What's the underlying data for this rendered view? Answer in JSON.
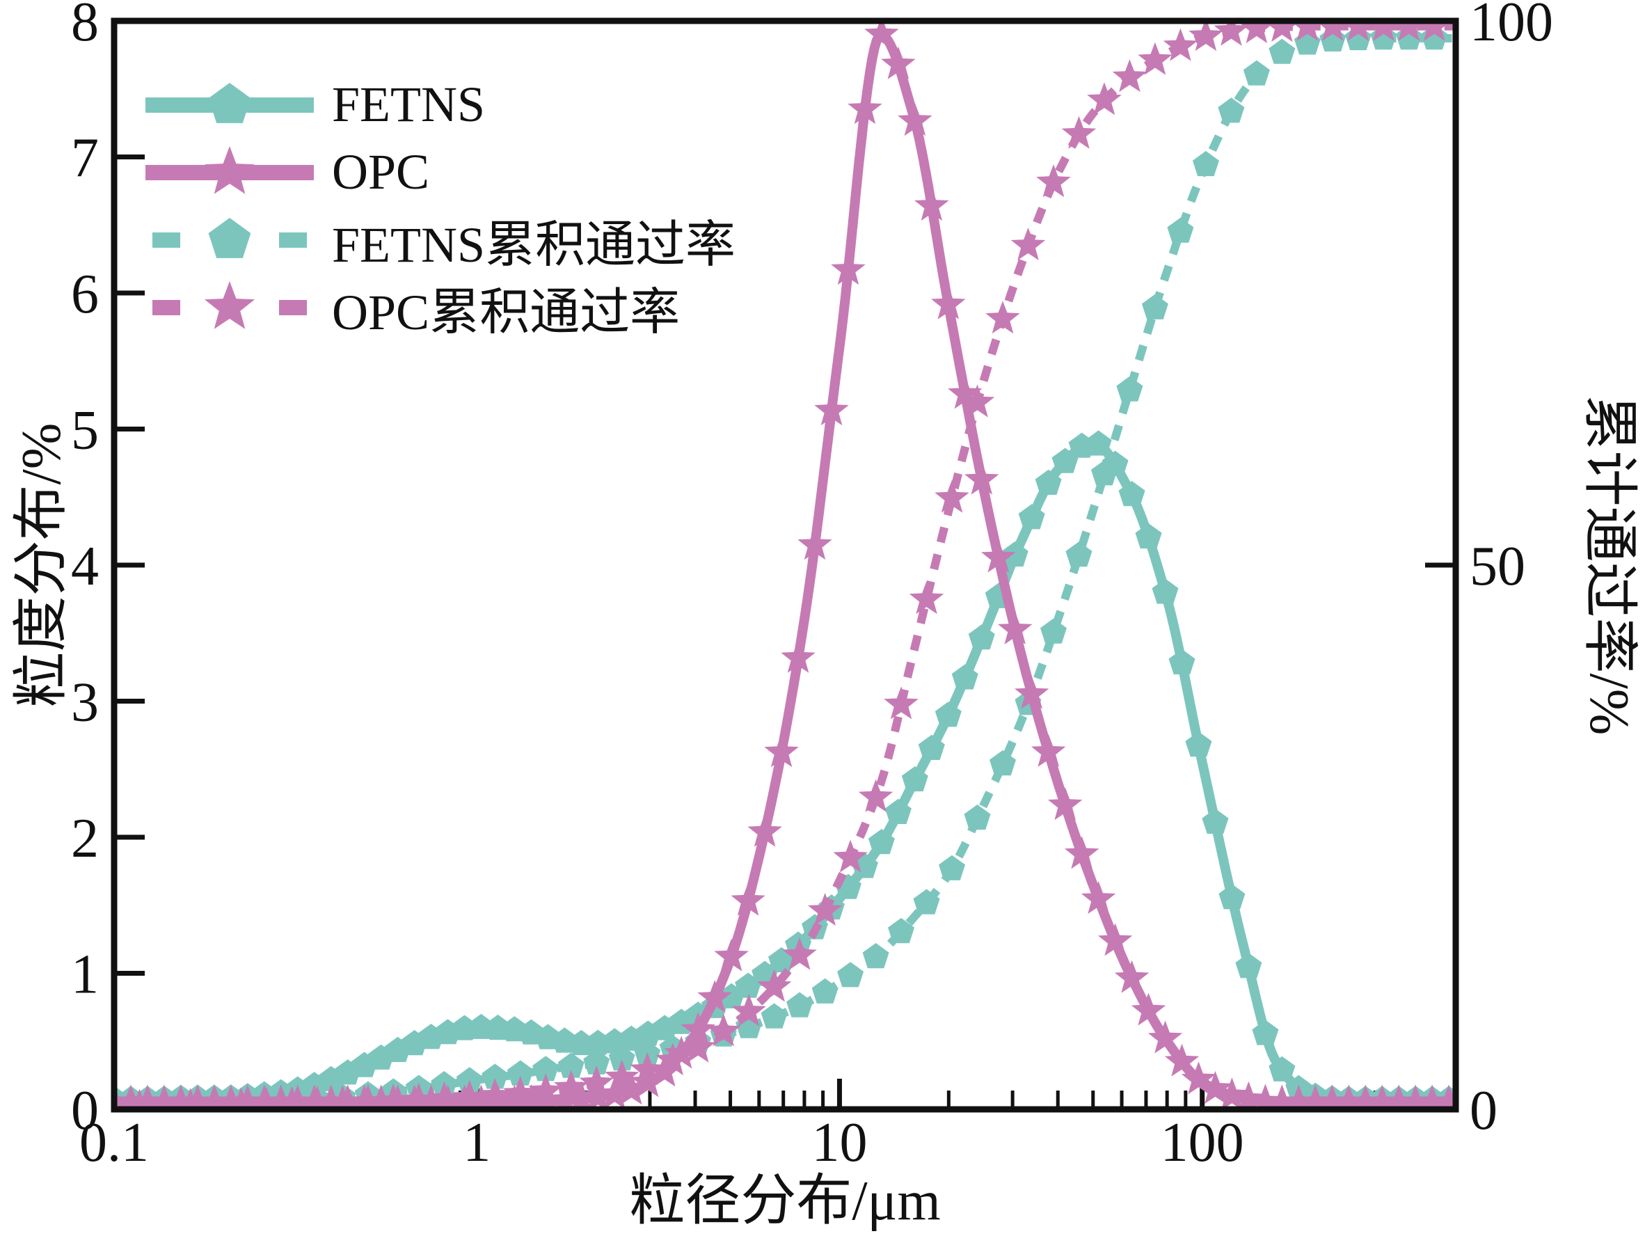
{
  "colors": {
    "fetns": "#7cc5bd",
    "opc": "#c67ab4",
    "axis": "#111111",
    "background": "#ffffff"
  },
  "axes": {
    "x": {
      "label": "粒径分布/μm",
      "scale": "log",
      "min": 0.1,
      "max": 500,
      "major_ticks": [
        0.1,
        1,
        10,
        100
      ],
      "tick_labels": [
        "0.1",
        "1",
        "10",
        "100"
      ]
    },
    "y_left": {
      "label": "粒度分布/%",
      "min": 0,
      "max": 8,
      "ticks": [
        0,
        1,
        2,
        3,
        4,
        5,
        6,
        7,
        8
      ],
      "tick_labels": [
        "0",
        "1",
        "2",
        "3",
        "4",
        "5",
        "6",
        "7",
        "8"
      ]
    },
    "y_right": {
      "label": "累计通过率/%",
      "min": 0,
      "max": 100,
      "ticks": [
        0,
        50,
        100
      ],
      "tick_labels": [
        "0",
        "50",
        "100"
      ]
    }
  },
  "legend": {
    "position": "upper-left",
    "items": [
      {
        "label": "FETNS",
        "style": "solid",
        "marker": "pentagon",
        "color_key": "fetns"
      },
      {
        "label": "OPC",
        "style": "solid",
        "marker": "star",
        "color_key": "opc"
      },
      {
        "label": "FETNS累积通过率",
        "style": "dashed",
        "marker": "pentagon",
        "color_key": "fetns"
      },
      {
        "label": "OPC累积通过率",
        "style": "dashed",
        "marker": "star",
        "color_key": "opc"
      }
    ]
  },
  "chart_data": {
    "type": "line",
    "title": "",
    "xlabel": "粒径分布/μm",
    "ylabel_left": "粒度分布/%",
    "ylabel_right": "累计通过率/%",
    "x_scale": "log",
    "xlim": [
      0.1,
      500
    ],
    "ylim_left": [
      0,
      8
    ],
    "ylim_right": [
      0,
      100
    ],
    "grid": false,
    "x": [
      0.1,
      0.13,
      0.16,
      0.2,
      0.25,
      0.32,
      0.4,
      0.5,
      0.63,
      0.8,
      1,
      1.3,
      1.6,
      2,
      2.5,
      3.2,
      4,
      5,
      6.3,
      8,
      10,
      13,
      16,
      20,
      25,
      32,
      40,
      50,
      63,
      80,
      100,
      130,
      160,
      200,
      250,
      320,
      400,
      500
    ],
    "series": [
      {
        "id": "fetns_dist",
        "name": "FETNS",
        "axis": "left",
        "style": "solid",
        "marker": "pentagon",
        "color_key": "fetns",
        "values": [
          0.07,
          0.07,
          0.08,
          0.08,
          0.1,
          0.14,
          0.22,
          0.33,
          0.45,
          0.55,
          0.6,
          0.58,
          0.52,
          0.48,
          0.5,
          0.58,
          0.68,
          0.82,
          1.0,
          1.25,
          1.55,
          1.95,
          2.4,
          2.9,
          3.5,
          4.2,
          4.7,
          4.9,
          4.55,
          3.75,
          2.55,
          1.2,
          0.35,
          0.1,
          0.07,
          0.07,
          0.07,
          0.07
        ]
      },
      {
        "id": "fetns_cum",
        "name": "FETNS累积通过率",
        "axis": "right",
        "style": "dashed",
        "marker": "pentagon",
        "color_key": "fetns",
        "values": [
          0.1,
          0.2,
          0.3,
          0.4,
          0.6,
          0.8,
          1.0,
          1.3,
          1.7,
          2.2,
          2.7,
          3.2,
          3.7,
          4.1,
          4.6,
          5.3,
          6.1,
          7.0,
          8.2,
          9.7,
          11.6,
          14.4,
          17.6,
          21.6,
          28,
          36,
          45,
          55,
          66,
          77,
          86,
          93.5,
          96.8,
          98.0,
          98.3,
          98.4,
          98.4,
          98.4
        ]
      },
      {
        "id": "opc_dist",
        "name": "OPC",
        "axis": "left",
        "style": "solid",
        "marker": "star",
        "color_key": "opc",
        "values": [
          0.05,
          0.05,
          0.05,
          0.05,
          0.05,
          0.05,
          0.05,
          0.05,
          0.05,
          0.05,
          0.05,
          0.05,
          0.06,
          0.08,
          0.12,
          0.25,
          0.55,
          1.1,
          2.1,
          3.6,
          5.6,
          7.9,
          7.3,
          5.9,
          4.55,
          3.3,
          2.4,
          1.65,
          1.0,
          0.5,
          0.2,
          0.08,
          0.05,
          0.05,
          0.05,
          0.05,
          0.05,
          0.05
        ]
      },
      {
        "id": "opc_cum",
        "name": "OPC累积通过率",
        "axis": "right",
        "style": "dashed",
        "marker": "star",
        "color_key": "opc",
        "values": [
          0.2,
          0.25,
          0.3,
          0.35,
          0.4,
          0.5,
          0.55,
          0.65,
          0.75,
          0.9,
          1.1,
          1.4,
          1.7,
          2.2,
          2.9,
          4.0,
          5.5,
          7.6,
          10.5,
          14.8,
          21,
          30,
          42,
          55,
          67,
          78,
          86,
          91.5,
          94.8,
          97,
          98.5,
          99.2,
          99.4,
          99.5,
          99.5,
          99.5,
          99.5,
          99.5
        ]
      }
    ]
  }
}
